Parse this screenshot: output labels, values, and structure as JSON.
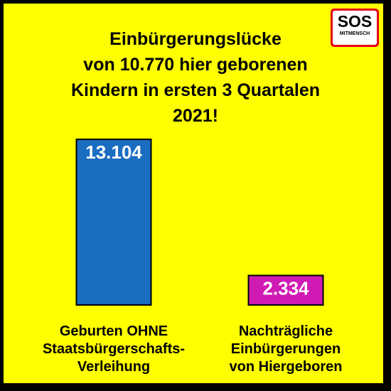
{
  "logo": {
    "text": "SOS",
    "subtext": "MITMENSCH"
  },
  "chart_data": {
    "type": "bar",
    "title_lines": [
      "Einbürgerungslücke",
      "von 10.770 hier geborenen",
      "Kindern in ersten 3 Quartalen",
      "2021!"
    ],
    "categories": [
      {
        "lines": [
          "Geburten OHNE",
          "Staatsbürgerschafts-",
          "Verleihung"
        ]
      },
      {
        "lines": [
          "Nachträgliche",
          "Einbürgerungen",
          "von Hiergeboren"
        ]
      }
    ],
    "values": [
      13104,
      2334
    ],
    "value_labels": [
      "13.104",
      "2.334"
    ],
    "colors": [
      "#1b6dc1",
      "#d01ab4"
    ],
    "ylim": [
      0,
      13104
    ],
    "grid": false,
    "legend": false
  }
}
